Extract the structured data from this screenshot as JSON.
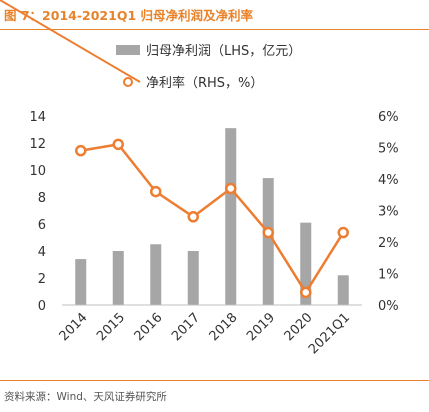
{
  "title": "图 7：2014-2021Q1 归母净利润及净利率",
  "source": "资料来源：Wind、天风证券研究所",
  "colors": {
    "accent": "#E8832B",
    "bar": "#A6A6A6",
    "line": "#ED7D31"
  },
  "chart_data": {
    "type": "bar+line",
    "categories": [
      "2014",
      "2015",
      "2016",
      "2017",
      "2018",
      "2019",
      "2020",
      "2021Q1"
    ],
    "series": [
      {
        "name": "归母净利润（LHS，亿元）",
        "type": "bar",
        "axis": "left",
        "values": [
          3.4,
          4.0,
          4.5,
          4.0,
          13.1,
          9.4,
          6.1,
          2.2
        ]
      },
      {
        "name": "净利率（RHS，%）",
        "type": "line",
        "axis": "right",
        "values": [
          4.9,
          5.1,
          3.6,
          2.8,
          3.7,
          2.3,
          0.4,
          2.3
        ]
      }
    ],
    "left_axis": {
      "min": 0,
      "max": 14,
      "ticks": [
        "0",
        "2",
        "4",
        "6",
        "8",
        "10",
        "12",
        "14"
      ]
    },
    "right_axis": {
      "min": 0,
      "max": 6,
      "ticks": [
        "0%",
        "1%",
        "2%",
        "3%",
        "4%",
        "5%",
        "6%"
      ]
    },
    "legend_position": "top",
    "grid": false
  }
}
